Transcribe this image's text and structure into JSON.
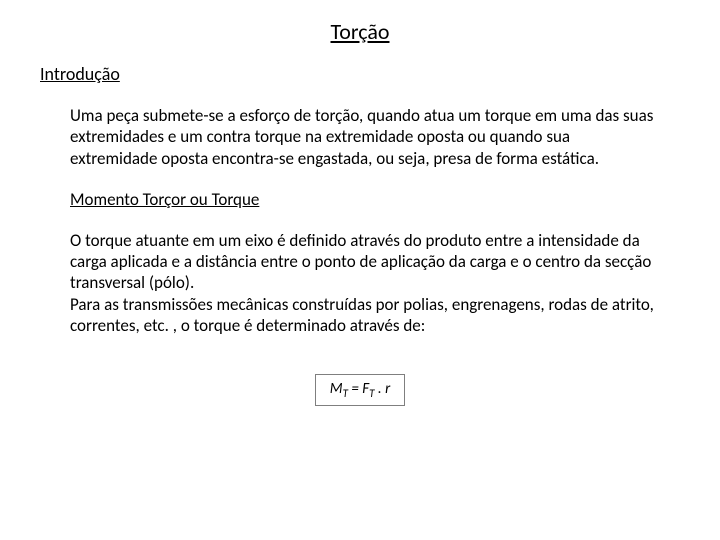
{
  "title": "Torção",
  "section_heading": "Introdução",
  "paragraph1": "Uma peça submete-se a esforço de torção, quando atua um torque em uma das suas extremidades e um contra torque na extremidade oposta ou quando sua extremidade oposta encontra-se engastada, ou seja, presa de forma estática.",
  "sub_heading": "Momento Torçor ou Torque",
  "paragraph2": "O torque atuante em um eixo é definido através do produto entre a intensidade da carga aplicada e a distância entre o ponto de aplicação da carga e o centro da secção transversal (pólo).",
  "paragraph3": "Para as transmissões mecânicas construídas por polias, engrenagens, rodas de atrito, correntes, etc. , o torque é determinado através de:",
  "formula": {
    "lhs_base": "M",
    "lhs_sub": "T",
    "eq": " = ",
    "rhs_base": "F",
    "rhs_sub": "T",
    "rhs_tail": " . r",
    "border_color": "#7f7f7f",
    "text_color": "#000000",
    "font_size": 15
  },
  "colors": {
    "background": "#ffffff",
    "text": "#000000"
  },
  "typography": {
    "title_size": 22,
    "heading_size": 18,
    "body_size": 17
  }
}
